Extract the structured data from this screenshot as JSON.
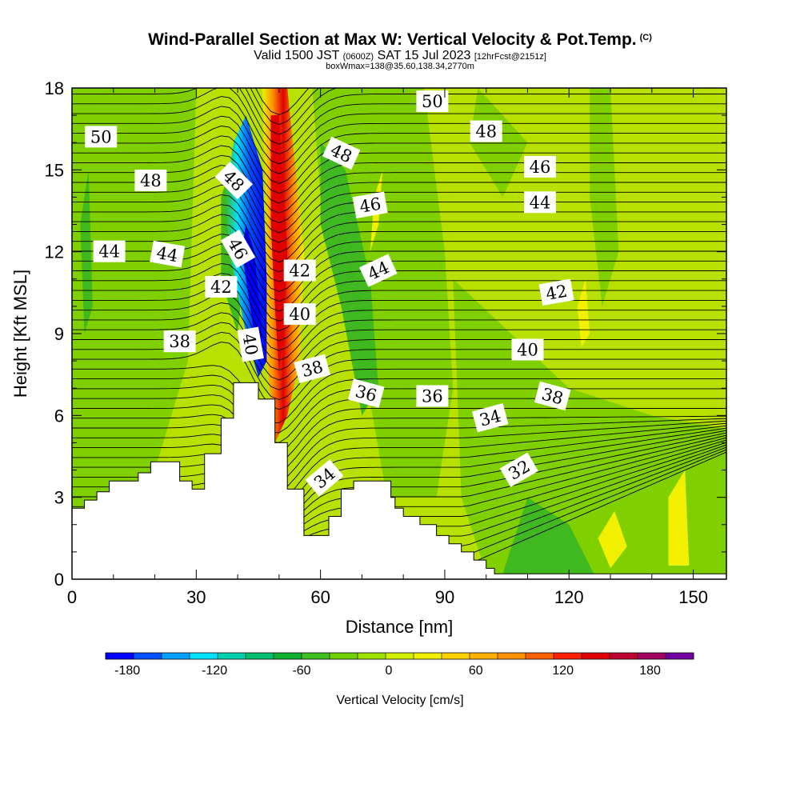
{
  "header": {
    "title": "Wind-Parallel Section at Max W: Vertical Velocity & Pot.Temp.",
    "copyright": "(C)",
    "valid_prefix": "Valid 1500 JST",
    "valid_utc": "(0600Z)",
    "valid_date": "SAT 15 Jul 2023",
    "forecast": "[12hrFcst@2151z]",
    "box_info": "boxWmax=138@35.60,138.34,2770m"
  },
  "chart_data": {
    "type": "heatmap",
    "title": "Wind-Parallel Section at Max W: Vertical Velocity & Pot.Temp.",
    "xlabel": "Distance [nm]",
    "ylabel": "Height [Kft MSL]",
    "xlim": [
      0,
      158
    ],
    "ylim": [
      0,
      18
    ],
    "x_ticks": [
      0,
      30,
      60,
      90,
      120,
      150
    ],
    "y_ticks": [
      0,
      3,
      6,
      9,
      12,
      15,
      18
    ],
    "terrain_profile": [
      [
        0,
        2.6
      ],
      [
        3,
        2.9
      ],
      [
        6,
        3.2
      ],
      [
        9,
        3.6
      ],
      [
        13,
        3.6
      ],
      [
        16,
        3.9
      ],
      [
        19,
        4.3
      ],
      [
        23,
        4.3
      ],
      [
        26,
        3.6
      ],
      [
        29,
        3.3
      ],
      [
        32,
        4.6
      ],
      [
        36,
        5.9
      ],
      [
        39,
        7.2
      ],
      [
        42,
        7.2
      ],
      [
        45,
        6.6
      ],
      [
        48,
        6.6
      ],
      [
        49,
        5.0
      ],
      [
        51,
        5.0
      ],
      [
        52,
        3.3
      ],
      [
        55,
        3.3
      ],
      [
        56,
        1.6
      ],
      [
        61,
        1.6
      ],
      [
        62,
        2.3
      ],
      [
        64,
        2.3
      ],
      [
        65,
        3.3
      ],
      [
        68,
        3.6
      ],
      [
        74,
        3.6
      ],
      [
        77,
        3.0
      ],
      [
        78,
        2.6
      ],
      [
        80,
        2.3
      ],
      [
        84,
        2.0
      ],
      [
        88,
        1.6
      ],
      [
        91,
        1.3
      ],
      [
        94,
        1.0
      ],
      [
        97,
        0.7
      ],
      [
        100,
        0.4
      ],
      [
        102,
        0.2
      ],
      [
        105,
        0.2
      ],
      [
        158,
        0.2
      ]
    ],
    "contour_labels": [
      {
        "text": "50",
        "x": 7,
        "y": 16.2,
        "rot": 0
      },
      {
        "text": "48",
        "x": 19,
        "y": 14.6,
        "rot": 0
      },
      {
        "text": "48",
        "x": 39,
        "y": 14.6,
        "rot": 45
      },
      {
        "text": "44",
        "x": 9,
        "y": 12.0,
        "rot": 0
      },
      {
        "text": "44",
        "x": 23,
        "y": 11.9,
        "rot": 10
      },
      {
        "text": "46",
        "x": 40,
        "y": 12.1,
        "rot": 60
      },
      {
        "text": "42",
        "x": 36,
        "y": 10.7,
        "rot": 0
      },
      {
        "text": "40",
        "x": 43,
        "y": 8.6,
        "rot": 80
      },
      {
        "text": "38",
        "x": 26,
        "y": 8.7,
        "rot": 0
      },
      {
        "text": "50",
        "x": 87,
        "y": 17.5,
        "rot": 0
      },
      {
        "text": "48",
        "x": 65,
        "y": 15.6,
        "rot": 25
      },
      {
        "text": "48",
        "x": 100,
        "y": 16.4,
        "rot": 0
      },
      {
        "text": "46",
        "x": 72,
        "y": 13.7,
        "rot": -10
      },
      {
        "text": "46",
        "x": 113,
        "y": 15.1,
        "rot": 0
      },
      {
        "text": "44",
        "x": 113,
        "y": 13.8,
        "rot": 0
      },
      {
        "text": "44",
        "x": 74,
        "y": 11.3,
        "rot": -25
      },
      {
        "text": "42",
        "x": 55,
        "y": 11.3,
        "rot": 0
      },
      {
        "text": "42",
        "x": 117,
        "y": 10.5,
        "rot": -10
      },
      {
        "text": "40",
        "x": 55,
        "y": 9.7,
        "rot": 0
      },
      {
        "text": "40",
        "x": 110,
        "y": 8.4,
        "rot": 0
      },
      {
        "text": "38",
        "x": 58,
        "y": 7.7,
        "rot": -15
      },
      {
        "text": "38",
        "x": 116,
        "y": 6.7,
        "rot": 15
      },
      {
        "text": "36",
        "x": 71,
        "y": 6.8,
        "rot": 15
      },
      {
        "text": "36",
        "x": 87,
        "y": 6.7,
        "rot": 0
      },
      {
        "text": "34",
        "x": 101,
        "y": 5.9,
        "rot": -15
      },
      {
        "text": "34",
        "x": 61,
        "y": 3.7,
        "rot": -40
      },
      {
        "text": "32",
        "x": 108,
        "y": 4.0,
        "rot": -30
      }
    ],
    "colorbar": {
      "label": "Vertical Velocity [cm/s]",
      "ticks": [
        "-180",
        "-120",
        "-60",
        "0",
        "60",
        "120",
        "180"
      ],
      "colors": [
        "#0000ff",
        "#0050ff",
        "#00a0ff",
        "#00e0ff",
        "#00d0b0",
        "#00c070",
        "#10b030",
        "#40c020",
        "#70d000",
        "#a0e000",
        "#d0f000",
        "#f0f000",
        "#ffd000",
        "#ffb000",
        "#ff9000",
        "#ff6000",
        "#ff2000",
        "#e00000",
        "#c00030",
        "#a00060",
        "#7000a0"
      ]
    },
    "fill_colors": {
      "background": "#b8e000",
      "weak_down": "#80d000",
      "moderate_down": "#40b820",
      "strong_down": "#00b050",
      "updraft_yellow": "#f0f000",
      "updraft_red": "#e00000"
    }
  }
}
